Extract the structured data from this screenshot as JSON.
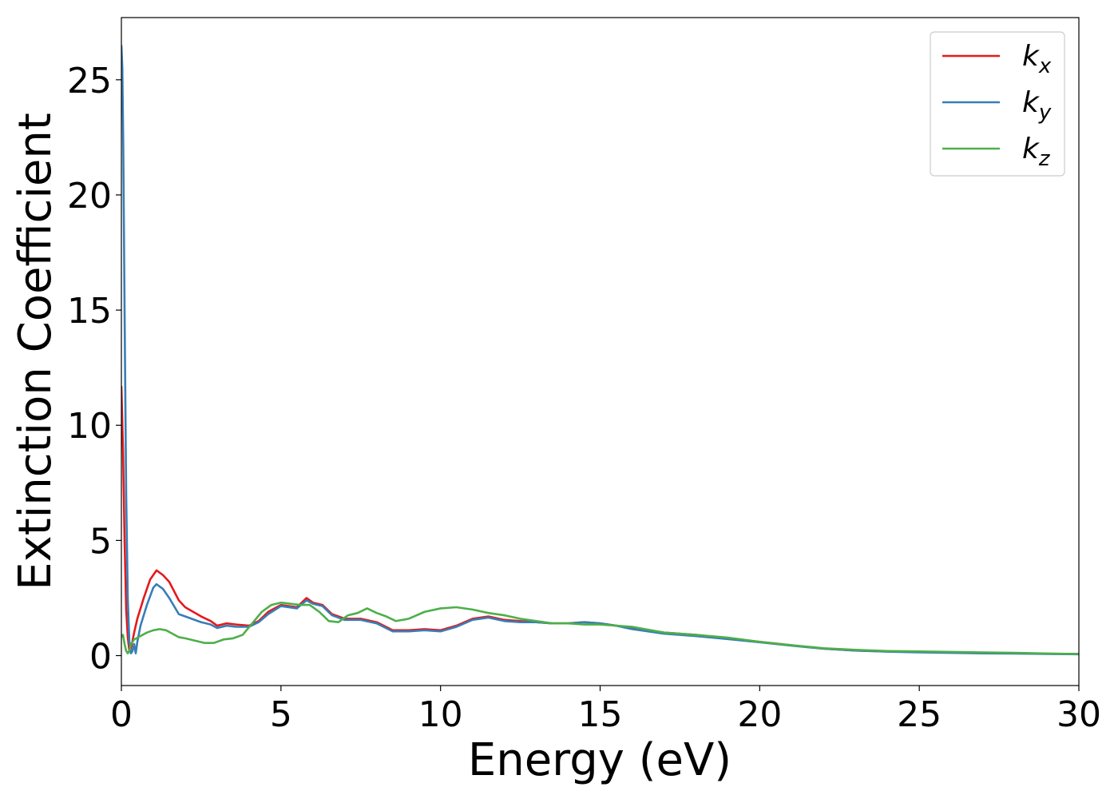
{
  "chart_data": {
    "type": "line",
    "title": "",
    "xlabel": "Energy (eV)",
    "ylabel": "Extinction Coefficient",
    "xlim": [
      0,
      30
    ],
    "ylim": [
      -1.3,
      27.7
    ],
    "xticks": [
      0,
      5,
      10,
      15,
      20,
      25,
      30
    ],
    "yticks": [
      0,
      5,
      10,
      15,
      20,
      25
    ],
    "grid": false,
    "legend_position": "top-right",
    "series": [
      {
        "name": "k",
        "subscript": "x",
        "color": "#e41a1c",
        "x": [
          0,
          0.05,
          0.1,
          0.15,
          0.2,
          0.25,
          0.3,
          0.4,
          0.5,
          0.7,
          0.9,
          1.1,
          1.3,
          1.5,
          1.8,
          2.0,
          2.5,
          2.8,
          3.0,
          3.3,
          3.6,
          4.0,
          4.3,
          4.6,
          5.0,
          5.5,
          5.8,
          6.0,
          6.3,
          6.6,
          7.0,
          7.5,
          8.0,
          8.5,
          9.0,
          9.5,
          10.0,
          10.5,
          11.0,
          11.5,
          12.0,
          12.5,
          13.0,
          13.5,
          14.0,
          14.5,
          15.0,
          15.5,
          16.0,
          17.0,
          18.0,
          19.0,
          20.0,
          21.0,
          22.0,
          23.0,
          24.0,
          25.0,
          26.0,
          27.0,
          28.0,
          29.0,
          30.0
        ],
        "y": [
          11.7,
          9.0,
          5.0,
          2.0,
          0.8,
          0.2,
          0.3,
          1.0,
          1.6,
          2.5,
          3.3,
          3.7,
          3.5,
          3.2,
          2.4,
          2.1,
          1.7,
          1.5,
          1.3,
          1.4,
          1.35,
          1.3,
          1.5,
          1.9,
          2.2,
          2.1,
          2.5,
          2.3,
          2.2,
          1.8,
          1.6,
          1.6,
          1.45,
          1.1,
          1.1,
          1.15,
          1.1,
          1.3,
          1.6,
          1.7,
          1.55,
          1.5,
          1.45,
          1.4,
          1.4,
          1.45,
          1.4,
          1.3,
          1.2,
          1.0,
          0.9,
          0.75,
          0.6,
          0.45,
          0.3,
          0.22,
          0.18,
          0.16,
          0.14,
          0.12,
          0.1,
          0.08,
          0.07
        ]
      },
      {
        "name": "k",
        "subscript": "y",
        "color": "#377eb8",
        "x": [
          0,
          0.03,
          0.06,
          0.1,
          0.15,
          0.2,
          0.25,
          0.3,
          0.35,
          0.4,
          0.45,
          0.5,
          0.6,
          0.8,
          1.0,
          1.1,
          1.3,
          1.5,
          1.8,
          2.0,
          2.5,
          2.8,
          3.0,
          3.3,
          3.6,
          4.0,
          4.3,
          4.6,
          5.0,
          5.5,
          5.8,
          6.0,
          6.3,
          6.6,
          7.0,
          7.5,
          8.0,
          8.5,
          9.0,
          9.5,
          10.0,
          10.5,
          11.0,
          11.5,
          12.0,
          12.5,
          13.0,
          13.5,
          14.0,
          14.5,
          15.0,
          15.5,
          16.0,
          17.0,
          18.0,
          19.0,
          20.0,
          21.0,
          22.0,
          23.0,
          24.0,
          25.0,
          26.0,
          27.0,
          28.0,
          29.0,
          30.0
        ],
        "y": [
          26.5,
          25.5,
          22.0,
          15.0,
          7.0,
          2.5,
          0.6,
          0.1,
          0.2,
          0.5,
          0.1,
          0.6,
          1.3,
          2.2,
          2.95,
          3.1,
          2.9,
          2.5,
          1.8,
          1.7,
          1.45,
          1.35,
          1.2,
          1.3,
          1.25,
          1.25,
          1.45,
          1.8,
          2.15,
          2.05,
          2.4,
          2.25,
          2.15,
          1.75,
          1.55,
          1.55,
          1.4,
          1.05,
          1.05,
          1.1,
          1.05,
          1.25,
          1.55,
          1.65,
          1.5,
          1.45,
          1.45,
          1.4,
          1.4,
          1.45,
          1.4,
          1.3,
          1.15,
          0.95,
          0.85,
          0.72,
          0.58,
          0.43,
          0.3,
          0.22,
          0.17,
          0.14,
          0.12,
          0.1,
          0.09,
          0.07,
          0.06
        ]
      },
      {
        "name": "k",
        "subscript": "z",
        "color": "#4daf4a",
        "x": [
          0,
          0.05,
          0.1,
          0.15,
          0.2,
          0.25,
          0.3,
          0.4,
          0.6,
          0.8,
          1.0,
          1.2,
          1.4,
          1.6,
          1.8,
          2.0,
          2.3,
          2.6,
          2.9,
          3.2,
          3.5,
          3.8,
          4.1,
          4.4,
          4.7,
          5.0,
          5.3,
          5.6,
          5.9,
          6.2,
          6.5,
          6.8,
          7.1,
          7.4,
          7.7,
          8.0,
          8.3,
          8.6,
          9.0,
          9.5,
          10.0,
          10.5,
          11.0,
          11.5,
          12.0,
          12.5,
          13.0,
          13.5,
          14.0,
          14.5,
          15.0,
          15.5,
          16.0,
          17.0,
          18.0,
          19.0,
          20.0,
          21.0,
          22.0,
          23.0,
          24.0,
          25.0,
          26.0,
          27.0,
          28.0,
          29.0,
          30.0
        ],
        "y": [
          0.8,
          0.9,
          0.5,
          0.2,
          0.1,
          0.2,
          0.5,
          0.7,
          0.85,
          1.0,
          1.1,
          1.15,
          1.1,
          0.95,
          0.8,
          0.75,
          0.65,
          0.55,
          0.55,
          0.7,
          0.75,
          0.9,
          1.4,
          1.9,
          2.2,
          2.3,
          2.25,
          2.2,
          2.2,
          1.9,
          1.5,
          1.45,
          1.75,
          1.85,
          2.05,
          1.85,
          1.7,
          1.5,
          1.6,
          1.9,
          2.05,
          2.1,
          2.0,
          1.85,
          1.75,
          1.6,
          1.5,
          1.4,
          1.4,
          1.35,
          1.35,
          1.3,
          1.25,
          1.0,
          0.9,
          0.78,
          0.6,
          0.45,
          0.32,
          0.25,
          0.2,
          0.18,
          0.16,
          0.14,
          0.12,
          0.09,
          0.07
        ]
      }
    ]
  }
}
